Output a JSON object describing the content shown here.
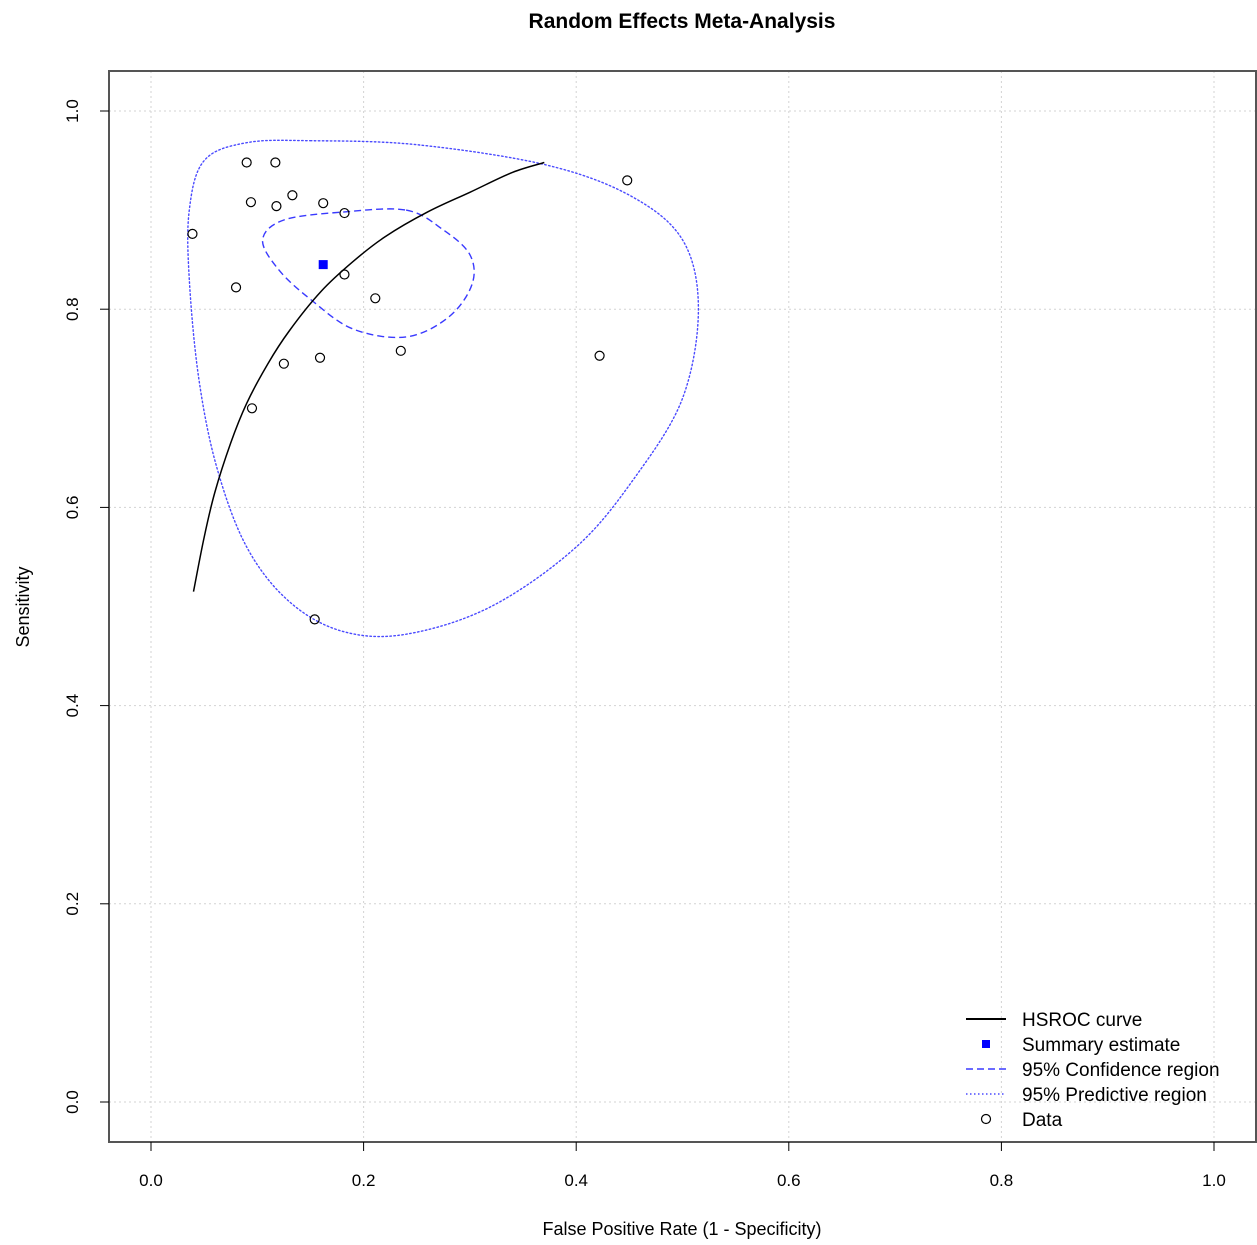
{
  "chart_data": {
    "type": "scatter",
    "title": "Random Effects Meta-Analysis",
    "xlabel": "False Positive Rate (1 - Specificity)",
    "ylabel": "Sensitivity",
    "xlim": [
      0.0,
      1.0
    ],
    "ylim": [
      0.0,
      1.0
    ],
    "xticks": [
      "0.0",
      "0.2",
      "0.4",
      "0.6",
      "0.8",
      "1.0"
    ],
    "yticks": [
      "0.0",
      "0.2",
      "0.4",
      "0.6",
      "0.8",
      "1.0"
    ],
    "grid": true,
    "legend_position": "bottom-right",
    "legend": [
      {
        "key": "hsroc",
        "label": "HSROC curve"
      },
      {
        "key": "summary",
        "label": "Summary estimate"
      },
      {
        "key": "confidence",
        "label": "95% Confidence region"
      },
      {
        "key": "predictive",
        "label": "95% Predictive region"
      },
      {
        "key": "data",
        "label": "Data"
      }
    ],
    "colors": {
      "hsroc": "#000000",
      "summary": "#0000ff",
      "confidence": "#3a3aff",
      "predictive": "#4a4aff",
      "data": "#000000",
      "grid": "#d3d3d3"
    },
    "summary_estimate": {
      "x": 0.162,
      "y": 0.845
    },
    "data_points": [
      {
        "x": 0.09,
        "y": 0.948
      },
      {
        "x": 0.117,
        "y": 0.948
      },
      {
        "x": 0.448,
        "y": 0.93
      },
      {
        "x": 0.133,
        "y": 0.915
      },
      {
        "x": 0.094,
        "y": 0.908
      },
      {
        "x": 0.162,
        "y": 0.907
      },
      {
        "x": 0.118,
        "y": 0.904
      },
      {
        "x": 0.182,
        "y": 0.897
      },
      {
        "x": 0.039,
        "y": 0.876
      },
      {
        "x": 0.182,
        "y": 0.835
      },
      {
        "x": 0.08,
        "y": 0.822
      },
      {
        "x": 0.211,
        "y": 0.811
      },
      {
        "x": 0.235,
        "y": 0.758
      },
      {
        "x": 0.159,
        "y": 0.751
      },
      {
        "x": 0.422,
        "y": 0.753
      },
      {
        "x": 0.125,
        "y": 0.745
      },
      {
        "x": 0.095,
        "y": 0.7
      },
      {
        "x": 0.154,
        "y": 0.487
      }
    ],
    "hsroc_curve": [
      {
        "x": 0.04,
        "y": 0.515
      },
      {
        "x": 0.05,
        "y": 0.57
      },
      {
        "x": 0.06,
        "y": 0.615
      },
      {
        "x": 0.075,
        "y": 0.665
      },
      {
        "x": 0.09,
        "y": 0.705
      },
      {
        "x": 0.11,
        "y": 0.745
      },
      {
        "x": 0.13,
        "y": 0.778
      },
      {
        "x": 0.16,
        "y": 0.818
      },
      {
        "x": 0.19,
        "y": 0.848
      },
      {
        "x": 0.22,
        "y": 0.873
      },
      {
        "x": 0.26,
        "y": 0.898
      },
      {
        "x": 0.3,
        "y": 0.918
      },
      {
        "x": 0.34,
        "y": 0.938
      },
      {
        "x": 0.37,
        "y": 0.948
      }
    ],
    "confidence_region": [
      {
        "x": 0.24,
        "y": 0.9
      },
      {
        "x": 0.275,
        "y": 0.88
      },
      {
        "x": 0.3,
        "y": 0.855
      },
      {
        "x": 0.302,
        "y": 0.825
      },
      {
        "x": 0.28,
        "y": 0.792
      },
      {
        "x": 0.24,
        "y": 0.772
      },
      {
        "x": 0.19,
        "y": 0.78
      },
      {
        "x": 0.15,
        "y": 0.81
      },
      {
        "x": 0.12,
        "y": 0.84
      },
      {
        "x": 0.105,
        "y": 0.87
      },
      {
        "x": 0.125,
        "y": 0.89
      },
      {
        "x": 0.18,
        "y": 0.898
      }
    ],
    "predictive_region": [
      {
        "x": 0.15,
        "y": 0.97
      },
      {
        "x": 0.25,
        "y": 0.966
      },
      {
        "x": 0.37,
        "y": 0.946
      },
      {
        "x": 0.45,
        "y": 0.915
      },
      {
        "x": 0.5,
        "y": 0.87
      },
      {
        "x": 0.515,
        "y": 0.8
      },
      {
        "x": 0.5,
        "y": 0.71
      },
      {
        "x": 0.455,
        "y": 0.63
      },
      {
        "x": 0.4,
        "y": 0.56
      },
      {
        "x": 0.32,
        "y": 0.5
      },
      {
        "x": 0.24,
        "y": 0.472
      },
      {
        "x": 0.18,
        "y": 0.475
      },
      {
        "x": 0.13,
        "y": 0.505
      },
      {
        "x": 0.09,
        "y": 0.56
      },
      {
        "x": 0.062,
        "y": 0.64
      },
      {
        "x": 0.045,
        "y": 0.73
      },
      {
        "x": 0.036,
        "y": 0.83
      },
      {
        "x": 0.036,
        "y": 0.9
      },
      {
        "x": 0.05,
        "y": 0.95
      },
      {
        "x": 0.09,
        "y": 0.968
      }
    ]
  }
}
